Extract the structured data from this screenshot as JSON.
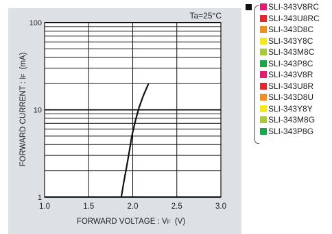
{
  "chart_data": {
    "type": "line",
    "condition": "Ta=25°C",
    "xlabel": "FORWARD VOLTAGE : V",
    "xlabel_sub": "F",
    "xlabel_unit": "(V)",
    "ylabel": "FORWARD CURRENT : I",
    "ylabel_sub": "F",
    "ylabel_unit": "(mA)",
    "xlim": [
      1.0,
      3.0
    ],
    "ylim": [
      1,
      100
    ],
    "y_scale": "log",
    "x_ticks": [
      "1.0",
      "1.5",
      "2.0",
      "2.5",
      "3.0"
    ],
    "y_ticks": [
      "1",
      "10",
      "100"
    ],
    "grid": true,
    "series": [
      {
        "x": [
          1.87,
          1.9,
          1.93,
          1.96,
          1.99,
          2.03,
          2.07,
          2.12,
          2.18
        ],
        "y": [
          1,
          1.5,
          2.2,
          3.3,
          5,
          7.5,
          10.5,
          14.5,
          20
        ],
        "color": "#111111"
      }
    ],
    "legend": {
      "marker_color": "#111111",
      "items": [
        {
          "label": "SLI-343V8RC",
          "color": "#e8196e"
        },
        {
          "label": "SLI-343U8RC",
          "color": "#e8242c"
        },
        {
          "label": "SLI-343D8C",
          "color": "#f28e1e"
        },
        {
          "label": "SLI-343Y8C",
          "color": "#f7e81a"
        },
        {
          "label": "SLI-343M8C",
          "color": "#a8c93a"
        },
        {
          "label": "SLI-343P8C",
          "color": "#18a84a"
        },
        {
          "label": "SLI-343V8R",
          "color": "#e8196e"
        },
        {
          "label": "SLI-343U8R",
          "color": "#e8242c"
        },
        {
          "label": "SLI-343D8U",
          "color": "#f28e1e"
        },
        {
          "label": "SLI-343Y8Y",
          "color": "#f7e81a"
        },
        {
          "label": "SLI-343M8G",
          "color": "#a8c93a"
        },
        {
          "label": "SLI-343P8G",
          "color": "#18a84a"
        }
      ]
    },
    "colors": {
      "panel_bg": "#dde1e6",
      "plot_bg": "#ffffff",
      "grid": "#111111",
      "curve": "#111111"
    }
  }
}
